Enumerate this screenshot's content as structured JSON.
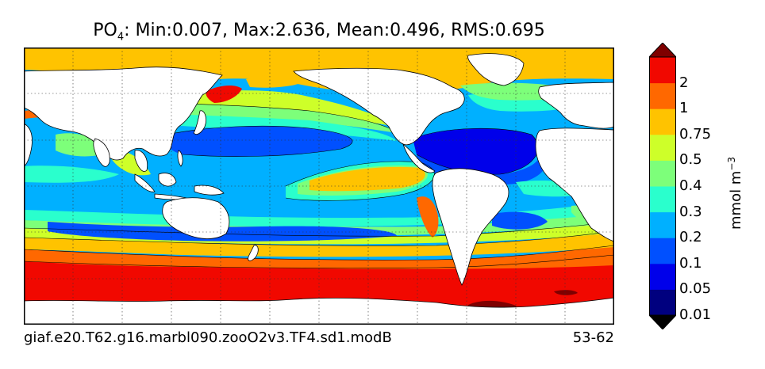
{
  "title": {
    "variable_base": "PO",
    "variable_sub": "4",
    "stats": ": Min:0.007, Max:2.636, Mean:0.496, RMS:0.695"
  },
  "caption": {
    "case_name": "giaf.e20.T62.g16.marbl090.zooO2v3.TF4.sd1.modB",
    "years": "53-62"
  },
  "colorbar": {
    "unit": "mmol m",
    "unit_exponent": "−3",
    "labels": [
      "2",
      "1",
      "0.75",
      "0.5",
      "0.4",
      "0.3",
      "0.2",
      "0.1",
      "0.05",
      "0.01"
    ],
    "colors": [
      "#00007f",
      "#0000ea",
      "#0050ff",
      "#00b0ff",
      "#2affcd",
      "#7dff7a",
      "#ceff29",
      "#ffc300",
      "#ff6800",
      "#f10800",
      "#7f0000"
    ]
  }
}
